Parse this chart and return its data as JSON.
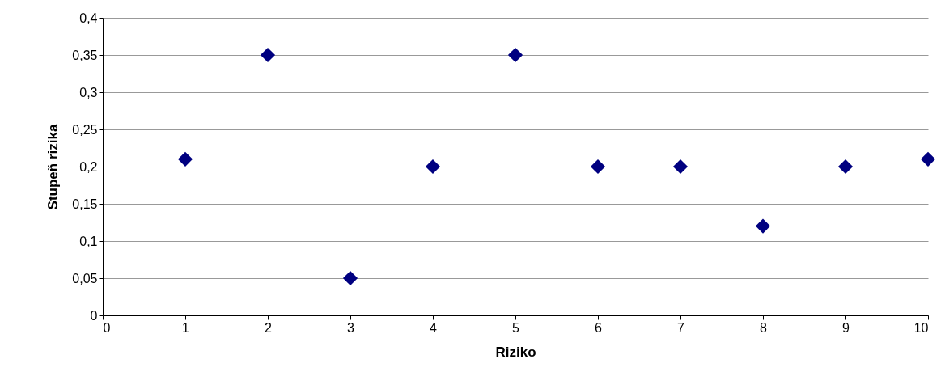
{
  "chart_data": {
    "type": "scatter",
    "xlabel": "Riziko",
    "ylabel": "Stupeň rizika",
    "x": [
      1,
      2,
      3,
      4,
      5,
      6,
      7,
      8,
      9,
      10
    ],
    "series": [
      {
        "color": "#000080",
        "values": [
          0.21,
          0.35,
          0.05,
          0.2,
          0.35,
          0.2,
          0.2,
          0.12,
          0.2,
          0.21
        ]
      }
    ],
    "xlim": [
      0,
      10
    ],
    "xticks": [
      0,
      1,
      2,
      3,
      4,
      5,
      6,
      7,
      8,
      9,
      10
    ],
    "ylim": [
      0,
      0.4
    ],
    "yticks": [
      0,
      {
        "value": 0.05,
        "label": "0,05"
      },
      {
        "value": 0.1,
        "label": "0,1"
      },
      {
        "value": 0.15,
        "label": "0,15"
      },
      {
        "value": 0.2,
        "label": "0,2"
      },
      {
        "value": 0.25,
        "label": "0,25"
      },
      {
        "value": 0.3,
        "label": "0,3"
      },
      {
        "value": 0.35,
        "label": "0,35"
      },
      {
        "value": 0.4,
        "label": "0,4"
      }
    ],
    "grid": "y",
    "marker": "diamond",
    "legend": false
  }
}
